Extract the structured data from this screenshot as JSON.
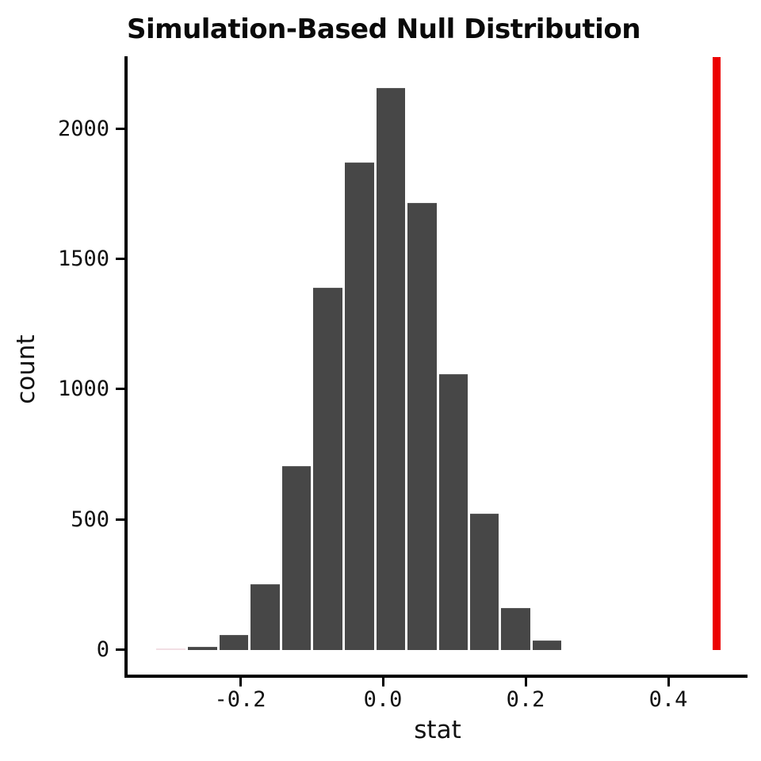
{
  "title": "Simulation-Based Null Distribution",
  "chart_data": {
    "type": "bar",
    "subtype": "histogram",
    "title": "Simulation-Based Null Distribution",
    "xlabel": "stat",
    "ylabel": "count",
    "bin_width": 0.0439,
    "bin_centers": [
      -0.297,
      -0.253,
      -0.209,
      -0.165,
      -0.121,
      -0.077,
      -0.033,
      0.011,
      0.055,
      0.099,
      0.142,
      0.186,
      0.23
    ],
    "counts": [
      2,
      11,
      56,
      251,
      704,
      1389,
      1869,
      2155,
      1714,
      1057,
      522,
      160,
      35
    ],
    "faint_bins": [
      0
    ],
    "observed_stat": 0.468,
    "observed_stat_line_color": "#ec0000",
    "bar_color": "#474747",
    "faint_bar_color": "#f2dee4",
    "x_ticks": [
      {
        "value": -0.2,
        "label": "-0.2"
      },
      {
        "value": 0.0,
        "label": "0.0"
      },
      {
        "value": 0.2,
        "label": "0.2"
      },
      {
        "value": 0.4,
        "label": "0.4"
      }
    ],
    "y_ticks": [
      {
        "value": 0,
        "label": "0"
      },
      {
        "value": 500,
        "label": "500"
      },
      {
        "value": 1000,
        "label": "1000"
      },
      {
        "value": 1500,
        "label": "1500"
      },
      {
        "value": 2000,
        "label": "2000"
      }
    ],
    "xlim": [
      -0.359,
      0.511
    ],
    "ylim": [
      0,
      2280
    ],
    "grid": "off",
    "legend": "none"
  }
}
